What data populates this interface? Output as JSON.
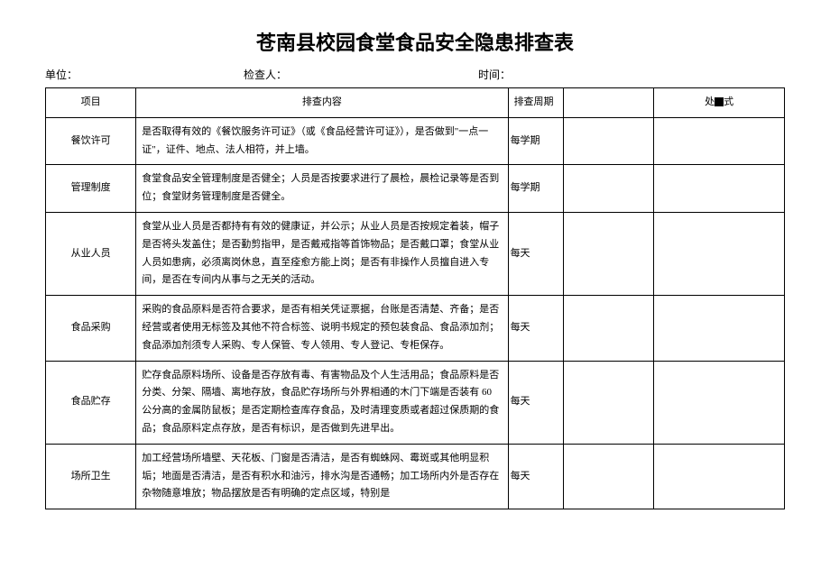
{
  "title": "苍南县校园食堂食品安全隐患排查表",
  "meta": {
    "unit_label": "单位：",
    "inspector_label": "检查人：",
    "time_label": "时间："
  },
  "headers": {
    "col1": "项目",
    "col2": "排查内容",
    "col3": "排查周期",
    "col4": "",
    "col5_prefix": "处",
    "col5_suffix": "式"
  },
  "rows": [
    {
      "category": "餐饮许可",
      "content": "是否取得有效的《餐饮服务许可证》（或《食品经营许可证》），是否做到\"一点一证\"，证件、地点、法人相符，并上墙。",
      "freq": "每学期"
    },
    {
      "category": "管理制度",
      "content": "食堂食品安全管理制度是否健全；人员是否按要求进行了晨检，晨检记录等是否到位；食堂财务管理制度是否健全。",
      "freq": "每学期"
    },
    {
      "category": "从业人员",
      "content": "食堂从业人员是否都持有有效的健康证，并公示；从业人员是否按规定着装，帽子是否将头发盖住；是否勤剪指甲，是否戴戒指等首饰物品；是否戴口罩；食堂从业人员如患病，必须离岗休息，直至痊愈方能上岗；是否有非操作人员擅自进入专间，是否在专间内从事与之无关的活动。",
      "freq": "每天"
    },
    {
      "category": "食品采购",
      "content": "采购的食品原料是否符合要求，是否有相关凭证票据，台账是否清楚、齐备；是否经营或者使用无标签及其他不符合标签、说明书规定的预包装食品、食品添加剂；食品添加剂须专人采购、专人保管、专人领用、专人登记、专柜保存。",
      "freq": "每天"
    },
    {
      "category": "食品贮存",
      "content": "贮存食品原料场所、设备是否存放有毒、有害物品及个人生活用品；食品原料是否分类、分架、隔墙、离地存放，食品贮存场所与外界相通的木门下端是否装有 60 公分高的金属防鼠板；是否定期检查库存食品，及时清理变质或者超过保质期的食品；食品原料定点存放，是否有标识，是否做到先进早出。",
      "freq": "每天"
    },
    {
      "category": "场所卫生",
      "content": "加工经营场所墙壁、天花板、门窗是否清洁，是否有蜘蛛网、霉斑或其他明显积垢；地面是否清洁，是否有积水和油污，排水沟是否通畅；加工场所内外是否存在杂物随意堆放；物品摆放是否有明确的定点区域，特别是",
      "freq": "每天"
    }
  ]
}
